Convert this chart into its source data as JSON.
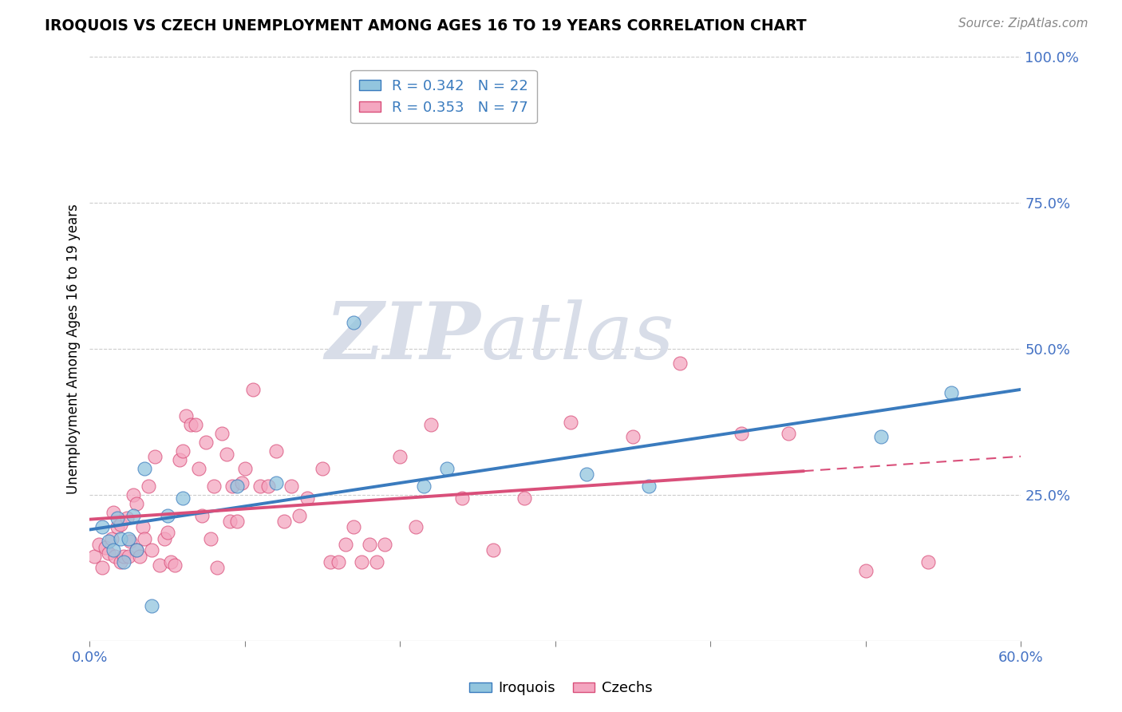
{
  "title": "IROQUOIS VS CZECH UNEMPLOYMENT AMONG AGES 16 TO 19 YEARS CORRELATION CHART",
  "source": "Source: ZipAtlas.com",
  "ylabel": "Unemployment Among Ages 16 to 19 years",
  "xlim": [
    0.0,
    0.6
  ],
  "ylim": [
    0.0,
    1.0
  ],
  "x_ticks": [
    0.0,
    0.1,
    0.2,
    0.3,
    0.4,
    0.5,
    0.6
  ],
  "x_tick_labels": [
    "0.0%",
    "",
    "",
    "",
    "",
    "",
    "60.0%"
  ],
  "y_ticks_right": [
    0.25,
    0.5,
    0.75,
    1.0
  ],
  "y_tick_labels_right": [
    "25.0%",
    "50.0%",
    "75.0%",
    "100.0%"
  ],
  "legend_iroquois": "R = 0.342   N = 22",
  "legend_czechs": "R = 0.353   N = 77",
  "iroquois_color": "#92c5de",
  "czechs_color": "#f4a6c0",
  "iroquois_line_color": "#3a7bbe",
  "czechs_line_color": "#d94f7a",
  "watermark_zip": "ZIP",
  "watermark_atlas": "atlas",
  "iroquois_x": [
    0.008,
    0.012,
    0.015,
    0.018,
    0.02,
    0.022,
    0.025,
    0.028,
    0.03,
    0.035,
    0.04,
    0.05,
    0.06,
    0.095,
    0.12,
    0.17,
    0.215,
    0.23,
    0.32,
    0.36,
    0.51,
    0.555
  ],
  "iroquois_y": [
    0.195,
    0.17,
    0.155,
    0.21,
    0.175,
    0.135,
    0.175,
    0.215,
    0.155,
    0.295,
    0.06,
    0.215,
    0.245,
    0.265,
    0.27,
    0.545,
    0.265,
    0.295,
    0.285,
    0.265,
    0.35,
    0.425
  ],
  "czechs_x": [
    0.003,
    0.006,
    0.008,
    0.01,
    0.012,
    0.014,
    0.015,
    0.016,
    0.018,
    0.02,
    0.02,
    0.022,
    0.024,
    0.025,
    0.026,
    0.028,
    0.03,
    0.03,
    0.032,
    0.034,
    0.035,
    0.038,
    0.04,
    0.042,
    0.045,
    0.048,
    0.05,
    0.052,
    0.055,
    0.058,
    0.06,
    0.062,
    0.065,
    0.068,
    0.07,
    0.072,
    0.075,
    0.078,
    0.08,
    0.082,
    0.085,
    0.088,
    0.09,
    0.092,
    0.095,
    0.098,
    0.1,
    0.105,
    0.11,
    0.115,
    0.12,
    0.125,
    0.13,
    0.135,
    0.14,
    0.15,
    0.155,
    0.16,
    0.165,
    0.17,
    0.175,
    0.18,
    0.185,
    0.19,
    0.2,
    0.21,
    0.22,
    0.24,
    0.26,
    0.28,
    0.31,
    0.35,
    0.38,
    0.42,
    0.45,
    0.5,
    0.54
  ],
  "czechs_y": [
    0.145,
    0.165,
    0.125,
    0.16,
    0.15,
    0.175,
    0.22,
    0.145,
    0.195,
    0.135,
    0.2,
    0.145,
    0.21,
    0.145,
    0.17,
    0.25,
    0.155,
    0.235,
    0.145,
    0.195,
    0.175,
    0.265,
    0.155,
    0.315,
    0.13,
    0.175,
    0.185,
    0.135,
    0.13,
    0.31,
    0.325,
    0.385,
    0.37,
    0.37,
    0.295,
    0.215,
    0.34,
    0.175,
    0.265,
    0.125,
    0.355,
    0.32,
    0.205,
    0.265,
    0.205,
    0.27,
    0.295,
    0.43,
    0.265,
    0.265,
    0.325,
    0.205,
    0.265,
    0.215,
    0.245,
    0.295,
    0.135,
    0.135,
    0.165,
    0.195,
    0.135,
    0.165,
    0.135,
    0.165,
    0.315,
    0.195,
    0.37,
    0.245,
    0.155,
    0.245,
    0.375,
    0.35,
    0.475,
    0.355,
    0.355,
    0.12,
    0.135
  ]
}
